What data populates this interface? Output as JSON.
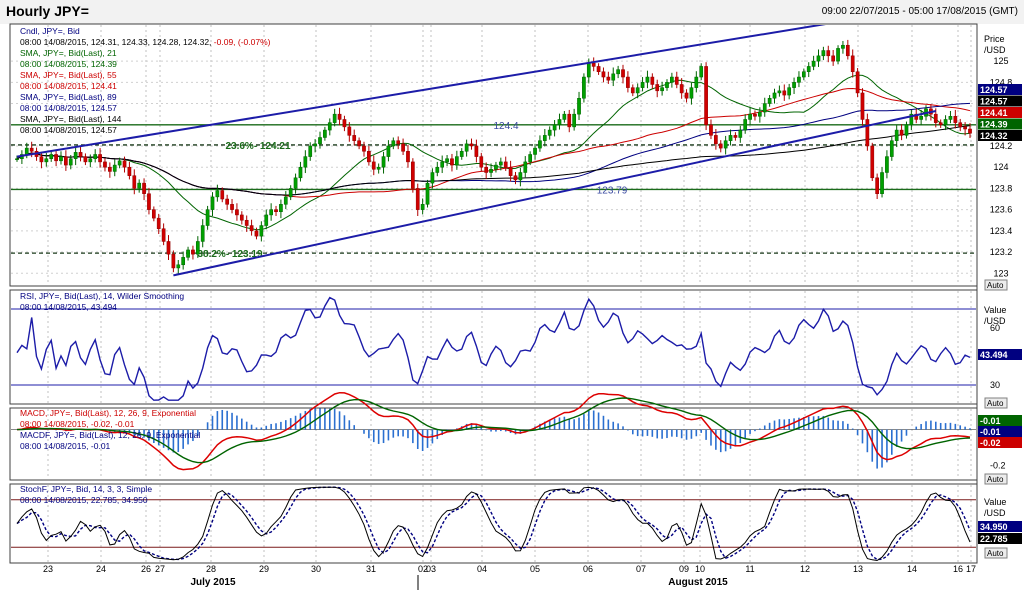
{
  "header": {
    "title": "Hourly JPY=",
    "range": "09:00 22/07/2015 - 05:00 17/08/2015 (GMT)"
  },
  "chart_data": [
    {
      "type": "candlestick",
      "ylim": [
        122.88,
        125.35
      ],
      "x_ticks": [
        "23",
        "24",
        "26",
        "27",
        "28",
        "29",
        "30",
        "31",
        "02",
        "03",
        "04",
        "05",
        "06",
        "07",
        "09",
        "10",
        "11",
        "12",
        "13",
        "14",
        "16",
        "17"
      ],
      "x_month_labels": [
        "July 2015",
        "August 2015"
      ],
      "y_ticks": [
        123,
        123.2,
        123.4,
        123.6,
        123.8,
        124,
        124.2,
        124.4,
        124.6,
        124.8,
        125
      ],
      "y_axis_title": [
        "Price",
        "/USD"
      ],
      "legend": [
        {
          "text": "Cndl, JPY=, Bid",
          "color": "#000080"
        },
        {
          "text": "08:00 14/08/2015, 124.31, 124.33, 124.28, 124.32, -0.09, (-0.07%)",
          "color": "#000000",
          "highlight": "-0.09, (-0.07%)",
          "highlight_color": "#cc0000"
        },
        {
          "text": "SMA, JPY=, Bid(Last), 21",
          "color": "#006400"
        },
        {
          "text": "08:00 14/08/2015, 124.39",
          "color": "#006400"
        },
        {
          "text": "SMA, JPY=, Bid(Last), 55",
          "color": "#cc0000"
        },
        {
          "text": "08:00 14/08/2015, 124.41",
          "color": "#cc0000"
        },
        {
          "text": "SMA, JPY=, Bid(Last), 89",
          "color": "#000080"
        },
        {
          "text": "08:00 14/08/2015, 124.57",
          "color": "#000080"
        },
        {
          "text": "SMA, JPY=, Bid(Last), 144",
          "color": "#000000"
        },
        {
          "text": "08:00 14/08/2015, 124.57",
          "color": "#000000"
        }
      ],
      "close_series": [
        124.08,
        124.12,
        124.18,
        124.15,
        124.1,
        124.05,
        124.08,
        124.12,
        124.06,
        124.1,
        124.02,
        124.08,
        124.14,
        124.1,
        124.05,
        124.08,
        124.12,
        124.05,
        124.0,
        123.96,
        124.02,
        124.06,
        124.0,
        123.92,
        123.8,
        123.85,
        123.75,
        123.6,
        123.52,
        123.42,
        123.3,
        123.18,
        123.05,
        123.08,
        123.15,
        123.22,
        123.18,
        123.3,
        123.45,
        123.6,
        123.72,
        123.78,
        123.7,
        123.65,
        123.6,
        123.55,
        123.5,
        123.45,
        123.4,
        123.35,
        123.45,
        123.55,
        123.6,
        123.58,
        123.65,
        123.72,
        123.8,
        123.9,
        124.0,
        124.1,
        124.2,
        124.22,
        124.28,
        124.35,
        124.42,
        124.5,
        124.45,
        124.38,
        124.3,
        124.25,
        124.2,
        124.15,
        124.05,
        123.98,
        124.0,
        124.1,
        124.2,
        124.25,
        124.22,
        124.15,
        124.05,
        123.8,
        123.6,
        123.65,
        123.85,
        123.95,
        124.0,
        124.05,
        124.08,
        124.02,
        124.1,
        124.15,
        124.22,
        124.2,
        124.1,
        124.0,
        123.95,
        123.98,
        124.02,
        124.05,
        124.0,
        123.92,
        123.88,
        123.95,
        124.05,
        124.12,
        124.18,
        124.25,
        124.3,
        124.35,
        124.4,
        124.45,
        124.5,
        124.38,
        124.5,
        124.65,
        124.85,
        124.98,
        124.95,
        124.9,
        124.85,
        124.82,
        124.88,
        124.92,
        124.85,
        124.75,
        124.7,
        124.75,
        124.8,
        124.85,
        124.78,
        124.72,
        124.75,
        124.8,
        124.85,
        124.78,
        124.7,
        124.65,
        124.75,
        124.85,
        124.95,
        124.4,
        124.3,
        124.22,
        124.18,
        124.25,
        124.3,
        124.28,
        124.35,
        124.45,
        124.5,
        124.48,
        124.52,
        124.6,
        124.65,
        124.7,
        124.72,
        124.68,
        124.75,
        124.8,
        124.85,
        124.9,
        124.95,
        125.0,
        125.05,
        125.1,
        125.05,
        125.0,
        125.12,
        125.15,
        125.05,
        124.9,
        124.7,
        124.45,
        124.2,
        123.9,
        123.75,
        123.95,
        124.1,
        124.25,
        124.35,
        124.3,
        124.4,
        124.5,
        124.45,
        124.48,
        124.55,
        124.5,
        124.42,
        124.4,
        124.45,
        124.48,
        124.42,
        124.38,
        124.36,
        124.32
      ],
      "resistance_line": {
        "from": [
          0,
          124.1
        ],
        "to": [
          188,
          125.52
        ]
      },
      "support_line": {
        "from": [
          32,
          122.98
        ],
        "to": [
          188,
          124.53
        ]
      },
      "horizontal_levels": [
        {
          "value": 124.4,
          "label": "124.4",
          "style": "solid"
        },
        {
          "value": 124.21,
          "label": "23.6%- 124.21",
          "style": "dashed"
        },
        {
          "value": 123.79,
          "label": "123.79",
          "style": "solid"
        },
        {
          "value": 123.19,
          "label": "38.2%- 123.19",
          "style": "dashed"
        }
      ],
      "current_value_badges": [
        {
          "text": "124.57",
          "color": "#000080"
        },
        {
          "text": "124.57",
          "color": "#000000"
        },
        {
          "text": "124.41",
          "color": "#cc0000"
        },
        {
          "text": "124.39",
          "color": "#006400"
        },
        {
          "text": "124.32",
          "color": "#000000"
        }
      ],
      "sma_periods": [
        21,
        55,
        89,
        144
      ]
    },
    {
      "type": "line",
      "legend": [
        {
          "text": "RSI, JPY=, Bid(Last), 14, Wilder Smoothing",
          "color": "#000080"
        },
        {
          "text": "08:00 14/08/2015, 43.494",
          "color": "#000080"
        }
      ],
      "ylim": [
        20,
        80
      ],
      "y_ticks": [
        30,
        60
      ],
      "y_axis_title": [
        "Value",
        "/USD"
      ],
      "reference_lines": [
        30,
        70
      ],
      "last_value": "43.494"
    },
    {
      "type": "macd",
      "legend": [
        {
          "text": "MACD, JPY=, Bid(Last), 12, 26, 9, Exponential",
          "color": "#cc0000"
        },
        {
          "text": "08:00 14/08/2015, -0.02, -0.01",
          "color": "#cc0000"
        },
        {
          "text": "MACDF, JPY=, Bid(Last), 12, 26, 9, Exponential",
          "color": "#000080"
        },
        {
          "text": "08:00 14/08/2015, -0.01",
          "color": "#000080"
        }
      ],
      "ylim": [
        -0.28,
        0.12
      ],
      "y_ticks": [
        -0.2
      ],
      "current_value_badges": [
        {
          "text": "-0.01",
          "color": "#006400"
        },
        {
          "text": "-0.01",
          "color": "#000080"
        },
        {
          "text": "-0.02",
          "color": "#cc0000"
        }
      ]
    },
    {
      "type": "line",
      "legend": [
        {
          "text": "StochF, JPY=, Bid, 14, 3, 3, Simple",
          "color": "#000080"
        },
        {
          "text": "08:00 14/08/2015, 22.785, 34.950",
          "color": "#000080"
        }
      ],
      "ylim": [
        0,
        100
      ],
      "y_axis_title": [
        "Value",
        "/USD"
      ],
      "reference_lines": [
        20,
        80
      ],
      "current_value_badges": [
        {
          "text": "34.950",
          "color": "#000080"
        },
        {
          "text": "22.785",
          "color": "#000000"
        }
      ]
    }
  ],
  "auto_buttons": [
    "Auto",
    "Auto",
    "Auto",
    "Auto"
  ]
}
